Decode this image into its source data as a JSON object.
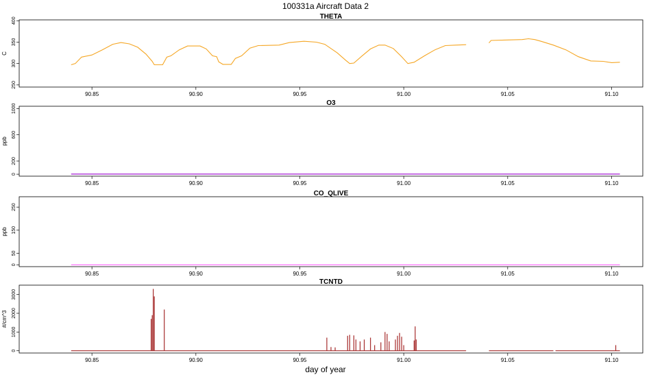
{
  "title": "100331a   Aircraft Data 2",
  "xlabel": "day of year",
  "chart_data": [
    {
      "type": "line",
      "title": "THETA",
      "ylabel": "C",
      "color": "#f5a623",
      "xlim": [
        90.815,
        91.115
      ],
      "ylim": [
        245,
        402
      ],
      "yticks": [
        "250",
        "300",
        "350",
        "400"
      ],
      "xticks": [
        "90.85",
        "90.90",
        "90.95",
        "91.00",
        "91.05",
        "91.10"
      ],
      "segments": [
        [
          [
            90.84,
            297
          ],
          [
            90.842,
            300
          ],
          [
            90.845,
            315
          ],
          [
            90.85,
            320
          ],
          [
            90.855,
            332
          ],
          [
            90.86,
            345
          ],
          [
            90.864,
            349
          ],
          [
            90.868,
            346
          ],
          [
            90.872,
            338
          ],
          [
            90.876,
            322
          ],
          [
            90.879,
            305
          ],
          [
            90.88,
            297
          ],
          [
            90.884,
            297
          ],
          [
            90.886,
            315
          ],
          [
            90.888,
            318
          ],
          [
            90.892,
            332
          ],
          [
            90.896,
            341
          ],
          [
            90.902,
            341
          ],
          [
            90.905,
            334
          ],
          [
            90.908,
            318
          ],
          [
            90.91,
            316
          ],
          [
            90.911,
            304
          ],
          [
            90.913,
            298
          ],
          [
            90.917,
            298
          ],
          [
            90.919,
            312
          ],
          [
            90.922,
            318
          ],
          [
            90.926,
            336
          ],
          [
            90.93,
            342
          ],
          [
            90.94,
            343
          ],
          [
            90.945,
            349
          ],
          [
            90.952,
            352
          ],
          [
            90.958,
            350
          ],
          [
            90.962,
            345
          ],
          [
            90.968,
            325
          ],
          [
            90.972,
            308
          ],
          [
            90.974,
            300
          ],
          [
            90.976,
            301
          ],
          [
            90.98,
            318
          ],
          [
            90.984,
            334
          ],
          [
            90.988,
            343
          ],
          [
            90.991,
            343
          ],
          [
            90.995,
            335
          ],
          [
            90.999,
            316
          ],
          [
            91.002,
            300
          ],
          [
            91.005,
            303
          ],
          [
            91.01,
            318
          ],
          [
            91.015,
            332
          ],
          [
            91.02,
            342
          ],
          [
            91.025,
            343
          ],
          [
            91.03,
            344
          ]
        ],
        [
          [
            91.041,
            348
          ],
          [
            91.042,
            354
          ],
          [
            91.05,
            355
          ],
          [
            91.057,
            356
          ],
          [
            91.06,
            358
          ],
          [
            91.063,
            356
          ],
          [
            91.066,
            352
          ],
          [
            91.072,
            343
          ],
          [
            91.078,
            332
          ],
          [
            91.084,
            316
          ],
          [
            91.09,
            306
          ],
          [
            91.096,
            305
          ],
          [
            91.1,
            302
          ],
          [
            91.104,
            303
          ]
        ]
      ]
    },
    {
      "type": "line",
      "title": "O3",
      "ylabel": "ppb",
      "color": "#9900cc",
      "xlim": [
        90.815,
        91.115
      ],
      "ylim": [
        -30,
        1035
      ],
      "yticks": [
        "0",
        "200",
        "600",
        "1000"
      ],
      "xticks": [
        "90.85",
        "90.90",
        "90.95",
        "91.00",
        "91.05",
        "91.10"
      ],
      "segments": [
        [
          [
            90.84,
            2
          ],
          [
            91.104,
            2
          ]
        ]
      ]
    },
    {
      "type": "line",
      "title": "CO_QLIVE",
      "ylabel": "ppb",
      "color": "#ff66ff",
      "xlim": [
        90.815,
        91.115
      ],
      "ylim": [
        -8,
        295
      ],
      "yticks": [
        "0",
        "50",
        "150",
        "250"
      ],
      "xticks": [
        "90.85",
        "90.90",
        "90.95",
        "91.00",
        "91.05",
        "91.10"
      ],
      "segments": [
        [
          [
            90.84,
            0
          ],
          [
            91.104,
            0
          ]
        ]
      ]
    },
    {
      "type": "line",
      "title": "TCNTD",
      "ylabel": "#/cm^3",
      "color": "#a52a2a",
      "xlim": [
        90.815,
        91.115
      ],
      "ylim": [
        -120,
        3500
      ],
      "yticks": [
        "0",
        "1000",
        "2000",
        "3000"
      ],
      "xticks": [
        "90.85",
        "90.90",
        "90.95",
        "91.00",
        "91.05",
        "91.10"
      ],
      "baseline": 0,
      "baseline_ranges": [
        [
          90.84,
          91.03
        ],
        [
          91.041,
          91.072
        ],
        [
          91.073,
          91.104
        ]
      ],
      "spikes": [
        [
          90.8785,
          1700
        ],
        [
          90.879,
          1900
        ],
        [
          90.8795,
          3300
        ],
        [
          90.88,
          2900
        ],
        [
          90.8848,
          2200
        ],
        [
          90.963,
          700
        ],
        [
          90.965,
          200
        ],
        [
          90.967,
          180
        ],
        [
          90.973,
          800
        ],
        [
          90.974,
          850
        ],
        [
          90.976,
          820
        ],
        [
          90.977,
          600
        ],
        [
          90.979,
          500
        ],
        [
          90.981,
          600
        ],
        [
          90.984,
          700
        ],
        [
          90.986,
          300
        ],
        [
          90.989,
          450
        ],
        [
          90.991,
          1000
        ],
        [
          90.992,
          900
        ],
        [
          90.993,
          500
        ],
        [
          90.996,
          600
        ],
        [
          90.997,
          800
        ],
        [
          90.998,
          950
        ],
        [
          90.999,
          750
        ],
        [
          91.0,
          300
        ],
        [
          91.005,
          550
        ],
        [
          91.0055,
          1300
        ],
        [
          91.006,
          600
        ],
        [
          91.102,
          300
        ]
      ]
    }
  ]
}
